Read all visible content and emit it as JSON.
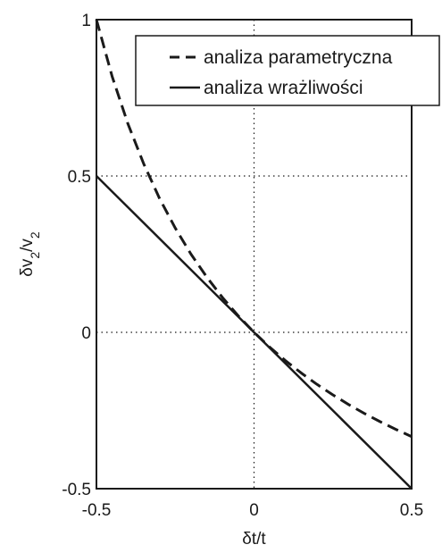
{
  "chart_data": {
    "type": "line",
    "xlabel": "δt/t",
    "ylabel": "δv2/v2",
    "ylabel_main": "δv",
    "ylabel_sub": "2",
    "ylabel_slash": "/v",
    "ylabel_sub2": "2",
    "xlim": [
      -0.5,
      0.5
    ],
    "ylim": [
      -0.5,
      1
    ],
    "x_ticks": [
      -0.5,
      0,
      0.5
    ],
    "x_tick_labels": [
      "-0.5",
      "0",
      "0.5"
    ],
    "y_ticks": [
      -0.5,
      0,
      0.5,
      1
    ],
    "y_tick_labels": [
      "-0.5",
      "0",
      "0.5",
      "1"
    ],
    "grid": "dotted at ticks",
    "legend_position": "top-right",
    "series": [
      {
        "name": "analiza parametryczna",
        "style": "dashed",
        "color": "#1a1a1a",
        "x": [
          -0.5,
          -0.45,
          -0.4,
          -0.35,
          -0.3,
          -0.25,
          -0.2,
          -0.15,
          -0.1,
          -0.05,
          0,
          0.05,
          0.1,
          0.15,
          0.2,
          0.25,
          0.3,
          0.35,
          0.4,
          0.45,
          0.5
        ],
        "y": [
          1.0,
          0.8182,
          0.6667,
          0.5385,
          0.4286,
          0.3333,
          0.25,
          0.1765,
          0.1111,
          0.0526,
          0.0,
          -0.0476,
          -0.0909,
          -0.1304,
          -0.1667,
          -0.2,
          -0.2308,
          -0.2593,
          -0.2857,
          -0.3103,
          -0.3333
        ]
      },
      {
        "name": "analiza wrażliwości",
        "style": "solid",
        "color": "#1a1a1a",
        "x": [
          -0.5,
          0.5
        ],
        "y": [
          0.5,
          -0.5
        ]
      }
    ]
  }
}
